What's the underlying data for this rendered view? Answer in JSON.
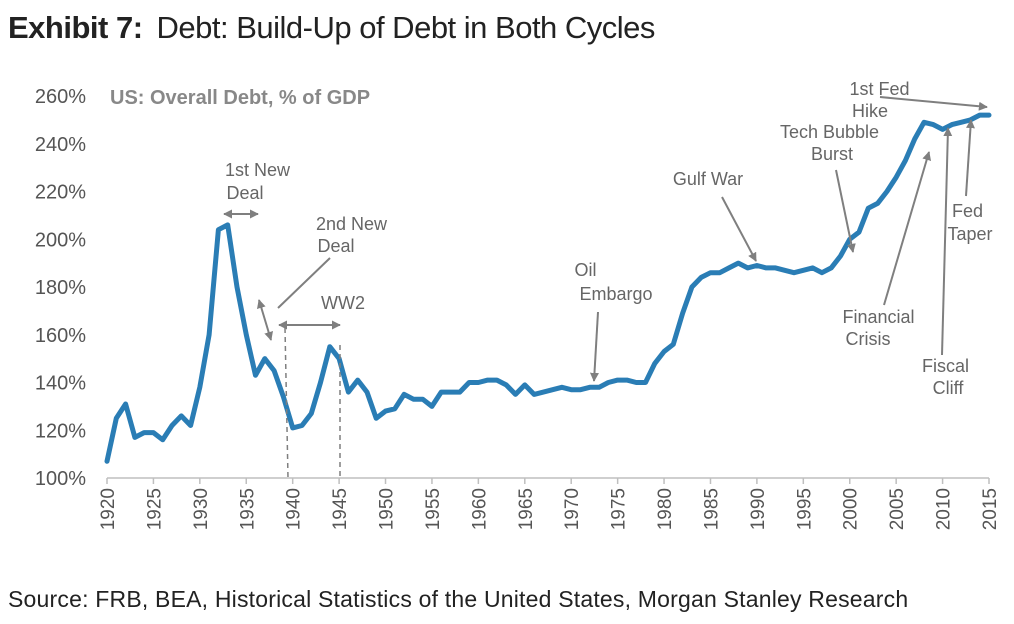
{
  "header": {
    "exhibit_label": "Exhibit 7:",
    "title": "Debt: Build-Up of Debt in Both Cycles"
  },
  "source": "Source: FRB, BEA, Historical Statistics of the United States, Morgan Stanley Research",
  "colors": {
    "line": "#2a7db5",
    "text": "#222222",
    "annotation": "#7f7f7f"
  },
  "chart_data": {
    "type": "line",
    "title": "US: Overall Debt, % of GDP",
    "xlabel": "",
    "ylabel": "",
    "xlim": [
      1920,
      2015
    ],
    "ylim": [
      100,
      260
    ],
    "y_ticks": [
      100,
      120,
      140,
      160,
      180,
      200,
      220,
      240,
      260
    ],
    "y_tick_labels": [
      "100%",
      "120%",
      "140%",
      "160%",
      "180%",
      "200%",
      "220%",
      "240%",
      "260%"
    ],
    "x_ticks": [
      1920,
      1925,
      1930,
      1935,
      1940,
      1945,
      1950,
      1955,
      1960,
      1965,
      1970,
      1975,
      1980,
      1985,
      1990,
      1995,
      2000,
      2005,
      2010,
      2015
    ],
    "x_tick_labels": [
      "1920",
      "1925",
      "1930",
      "1935",
      "1940",
      "1945",
      "1950",
      "1955",
      "1960",
      "1965",
      "1970",
      "1975",
      "1980",
      "1985",
      "1990",
      "1995",
      "2000",
      "2005",
      "2010",
      "2015"
    ],
    "grid": false,
    "series": [
      {
        "name": "US: Overall Debt, % of GDP",
        "x": [
          1920,
          1921,
          1922,
          1923,
          1924,
          1925,
          1926,
          1927,
          1928,
          1929,
          1930,
          1931,
          1932,
          1933,
          1934,
          1935,
          1936,
          1937,
          1938,
          1939,
          1940,
          1941,
          1942,
          1943,
          1944,
          1945,
          1946,
          1947,
          1948,
          1949,
          1950,
          1951,
          1952,
          1953,
          1954,
          1955,
          1956,
          1957,
          1958,
          1959,
          1960,
          1961,
          1962,
          1963,
          1964,
          1965,
          1966,
          1967,
          1968,
          1969,
          1970,
          1971,
          1972,
          1973,
          1974,
          1975,
          1976,
          1977,
          1978,
          1979,
          1980,
          1981,
          1982,
          1983,
          1984,
          1985,
          1986,
          1987,
          1988,
          1989,
          1990,
          1991,
          1992,
          1993,
          1994,
          1995,
          1996,
          1997,
          1998,
          1999,
          2000,
          2001,
          2002,
          2003,
          2004,
          2005,
          2006,
          2007,
          2008,
          2009,
          2010,
          2011,
          2012,
          2013,
          2014,
          2015
        ],
        "values": [
          107,
          125,
          131,
          117,
          119,
          119,
          116,
          122,
          126,
          122,
          138,
          160,
          204,
          206,
          180,
          160,
          143,
          150,
          145,
          134,
          121,
          122,
          127,
          140,
          155,
          150,
          136,
          141,
          136,
          125,
          128,
          129,
          135,
          133,
          133,
          130,
          136,
          136,
          136,
          140,
          140,
          141,
          141,
          139,
          135,
          139,
          135,
          136,
          137,
          138,
          137,
          137,
          138,
          138,
          140,
          141,
          141,
          140,
          140,
          148,
          153,
          156,
          169,
          180,
          184,
          186,
          186,
          188,
          190,
          188,
          189,
          188,
          188,
          187,
          186,
          187,
          188,
          186,
          188,
          193,
          200,
          203,
          213,
          215,
          220,
          226,
          233,
          242,
          249,
          248,
          246,
          248,
          249,
          250,
          252,
          252
        ]
      }
    ],
    "annotations": [
      {
        "id": "new-deal-1",
        "label_lines": [
          "1st New",
          "Deal"
        ]
      },
      {
        "id": "new-deal-2",
        "label_lines": [
          "2nd New",
          "Deal"
        ]
      },
      {
        "id": "ww2",
        "label_lines": [
          "WW2"
        ]
      },
      {
        "id": "oil-embargo",
        "label_lines": [
          "Oil",
          "Embargo"
        ]
      },
      {
        "id": "gulf-war",
        "label_lines": [
          "Gulf War"
        ]
      },
      {
        "id": "tech-bubble",
        "label_lines": [
          "Tech Bubble",
          "Burst"
        ]
      },
      {
        "id": "first-fed-hike",
        "label_lines": [
          "1st Fed",
          "Hike"
        ]
      },
      {
        "id": "fed-taper",
        "label_lines": [
          "Fed",
          "Taper"
        ]
      },
      {
        "id": "financial-crisis",
        "label_lines": [
          "Financial",
          "Crisis"
        ]
      },
      {
        "id": "fiscal-cliff",
        "label_lines": [
          "Fiscal",
          "Cliff"
        ]
      }
    ]
  }
}
